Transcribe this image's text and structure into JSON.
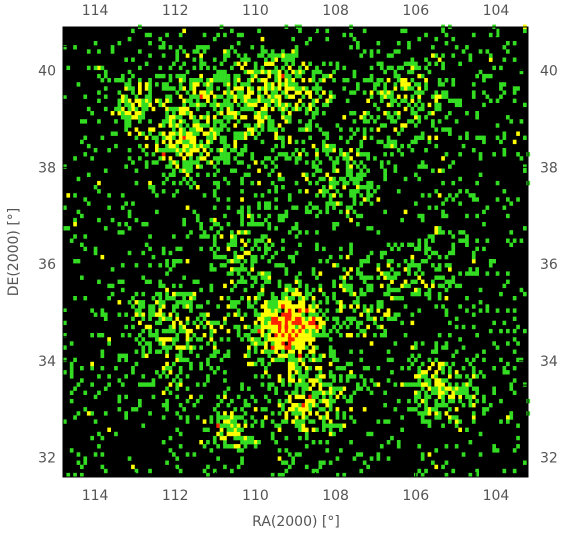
{
  "chart_data": {
    "type": "heatmap",
    "title": "",
    "xlabel": "RA(2000)  [°]",
    "ylabel": "DE(2000)  [°]",
    "xlim": [
      114.8,
      103.2
    ],
    "ylim": [
      31.6,
      40.9
    ],
    "x_reversed": true,
    "xticks": [
      114,
      112,
      110,
      108,
      106,
      104
    ],
    "yticks": [
      32,
      34,
      36,
      38,
      40
    ],
    "xtick_labels": [
      "114",
      "112",
      "110",
      "108",
      "106",
      "104"
    ],
    "ytick_labels": [
      "32",
      "34",
      "36",
      "38",
      "40"
    ],
    "background_color": "#000000",
    "levels": [
      {
        "level": "low",
        "color": "#33dd22"
      },
      {
        "level": "medium",
        "color": "#ffff00"
      },
      {
        "level": "high",
        "color": "#ff2200"
      }
    ],
    "grid": false,
    "cell_size_deg": 0.085,
    "seed": 7,
    "clusters": [
      {
        "ra": 109.2,
        "de": 34.7,
        "spread": 0.45,
        "n": 180
      },
      {
        "ra": 108.6,
        "de": 33.3,
        "spread": 0.55,
        "n": 70
      },
      {
        "ra": 110.8,
        "de": 39.3,
        "spread": 0.9,
        "n": 110
      },
      {
        "ra": 109.3,
        "de": 39.6,
        "spread": 0.6,
        "n": 70
      },
      {
        "ra": 111.8,
        "de": 38.5,
        "spread": 0.5,
        "n": 60
      },
      {
        "ra": 113.1,
        "de": 39.4,
        "spread": 0.35,
        "n": 25
      },
      {
        "ra": 106.2,
        "de": 39.4,
        "spread": 0.7,
        "n": 60
      },
      {
        "ra": 105.3,
        "de": 33.4,
        "spread": 0.45,
        "n": 50
      },
      {
        "ra": 112.0,
        "de": 34.6,
        "spread": 0.8,
        "n": 70
      },
      {
        "ra": 110.3,
        "de": 36.4,
        "spread": 0.7,
        "n": 40
      },
      {
        "ra": 107.8,
        "de": 37.9,
        "spread": 0.6,
        "n": 35
      },
      {
        "ra": 105.6,
        "de": 36.0,
        "spread": 0.7,
        "n": 25
      },
      {
        "ra": 110.6,
        "de": 32.6,
        "spread": 0.3,
        "n": 25
      },
      {
        "ra": 107.4,
        "de": 35.2,
        "spread": 0.6,
        "n": 35
      }
    ],
    "background_points": 1450
  }
}
